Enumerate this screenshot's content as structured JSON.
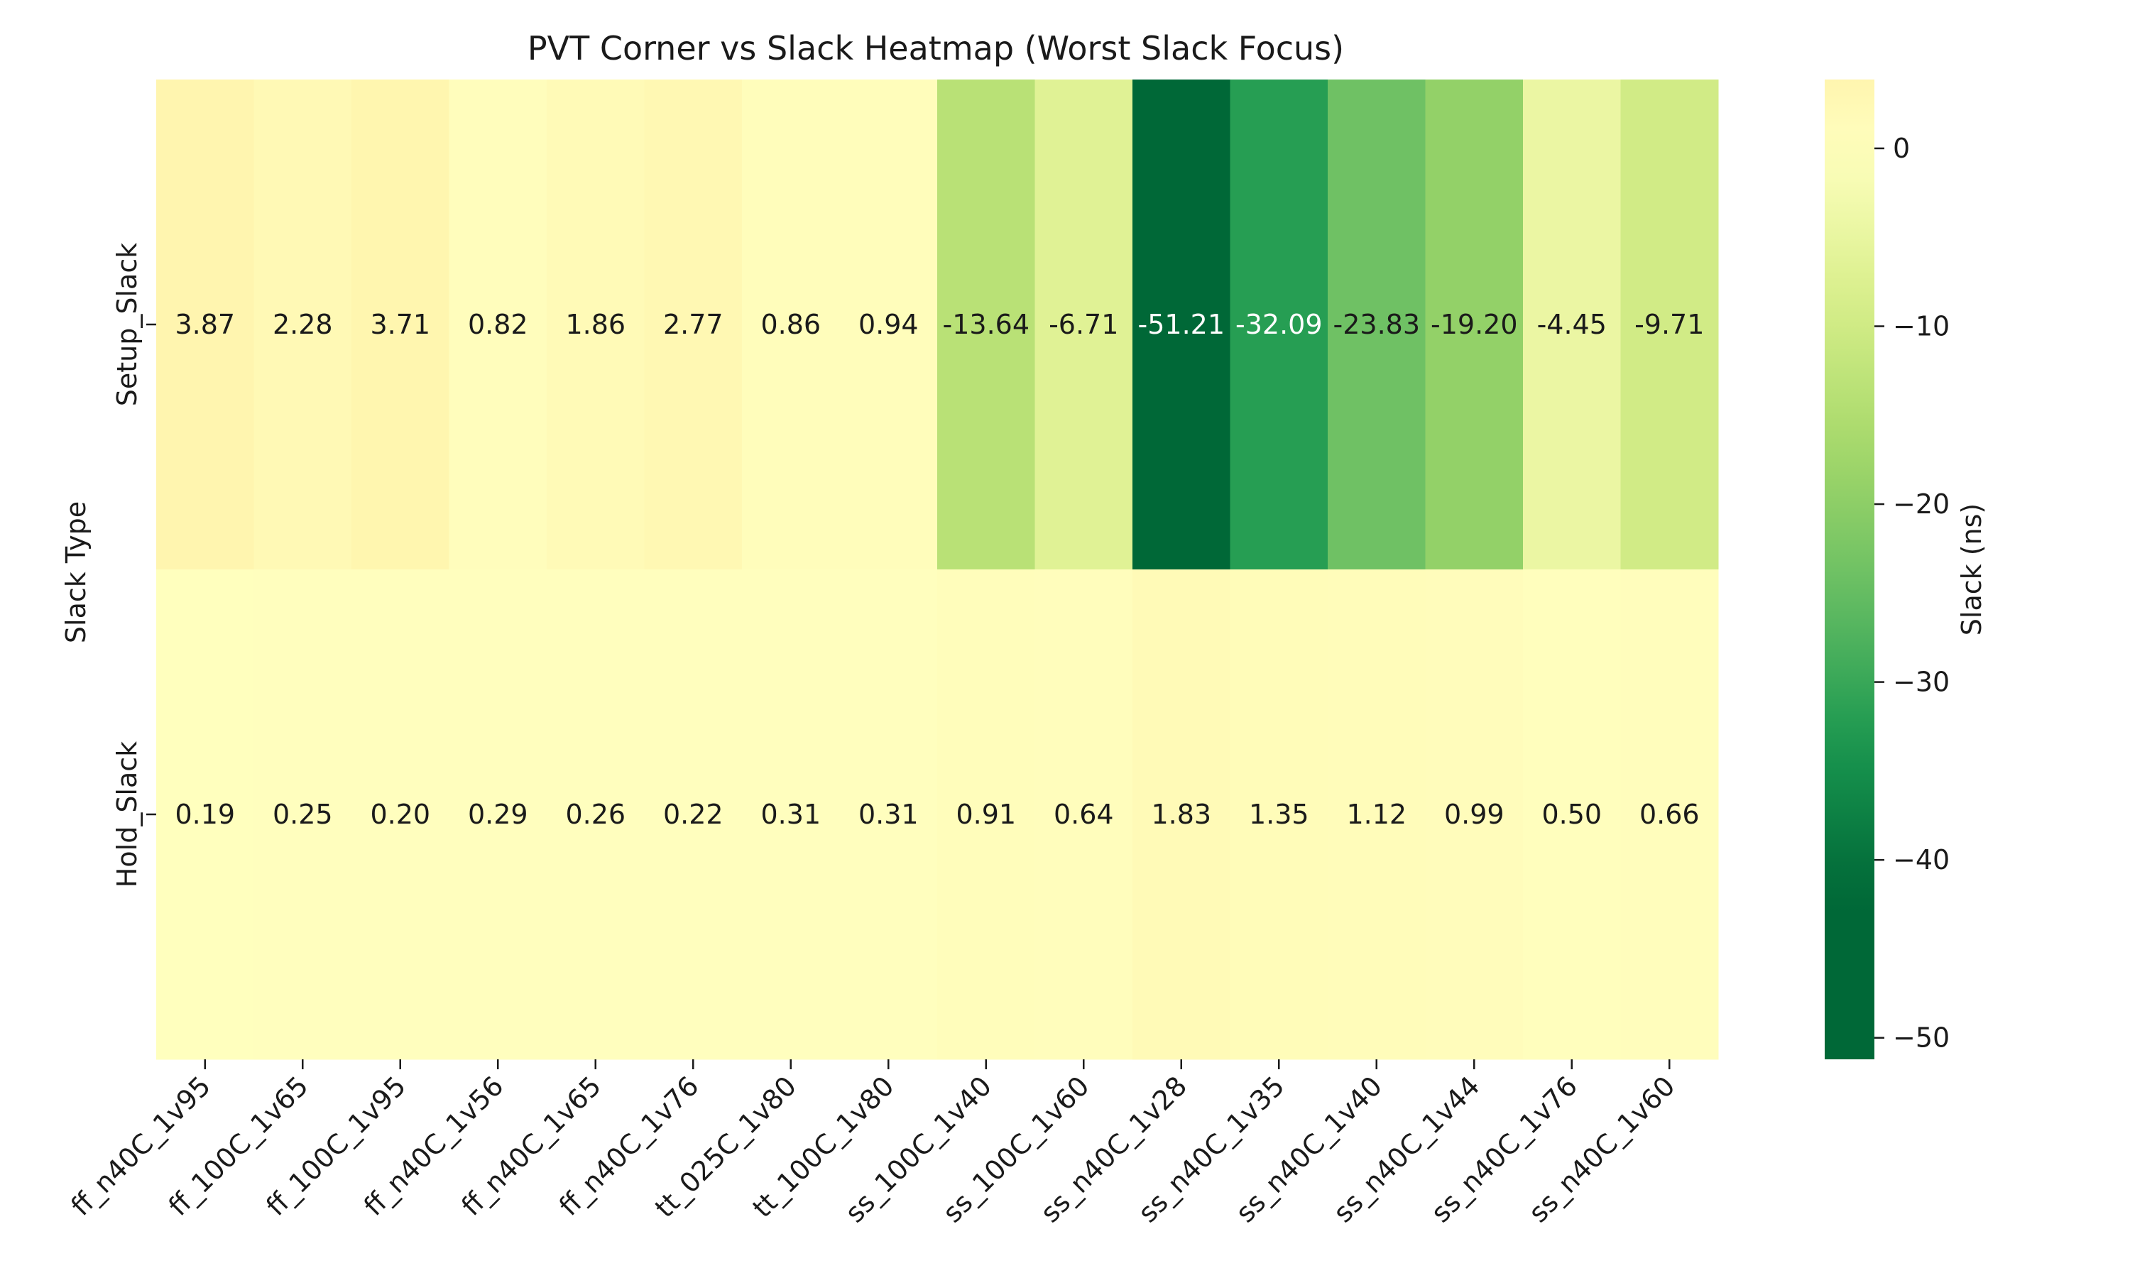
{
  "chart_data": {
    "type": "heatmap",
    "title": "PVT Corner vs Slack Heatmap (Worst Slack Focus)",
    "xlabel": "",
    "ylabel": "Slack Type",
    "colorbar_label": "Slack (ns)",
    "colormap": "RdYlGn_r",
    "colorbar_range": [
      -51.21,
      3.87
    ],
    "colorbar_ticks": [
      0,
      -10,
      -20,
      -30,
      -40,
      -50
    ],
    "colorbar_tick_labels": [
      "0",
      "−10",
      "−20",
      "−30",
      "−40",
      "−50"
    ],
    "x_categories": [
      "ff_n40C_1v95",
      "ff_100C_1v65",
      "ff_100C_1v95",
      "ff_n40C_1v56",
      "ff_n40C_1v65",
      "ff_n40C_1v76",
      "tt_025C_1v80",
      "tt_100C_1v80",
      "ss_100C_1v40",
      "ss_100C_1v60",
      "ss_n40C_1v28",
      "ss_n40C_1v35",
      "ss_n40C_1v40",
      "ss_n40C_1v44",
      "ss_n40C_1v76",
      "ss_n40C_1v60"
    ],
    "y_categories": [
      "Setup_Slack",
      "Hold_Slack"
    ],
    "values": [
      [
        3.87,
        2.28,
        3.71,
        0.82,
        1.86,
        2.77,
        0.86,
        0.94,
        -13.64,
        -6.71,
        -51.21,
        -32.09,
        -23.83,
        -19.2,
        -4.45,
        -9.71
      ],
      [
        0.19,
        0.25,
        0.2,
        0.29,
        0.26,
        0.22,
        0.31,
        0.31,
        0.91,
        0.64,
        1.83,
        1.35,
        1.12,
        0.99,
        0.5,
        0.66
      ]
    ],
    "cell_labels": [
      [
        "3.87",
        "2.28",
        "3.71",
        "0.82",
        "1.86",
        "2.77",
        "0.86",
        "0.94",
        "-13.64",
        "-6.71",
        "-51.21",
        "-32.09",
        "-23.83",
        "-19.20",
        "-4.45",
        "-9.71"
      ],
      [
        "0.19",
        "0.25",
        "0.20",
        "0.29",
        "0.26",
        "0.22",
        "0.31",
        "0.31",
        "0.91",
        "0.64",
        "1.83",
        "1.35",
        "1.12",
        "0.99",
        "0.50",
        "0.66"
      ]
    ],
    "grid": false,
    "colorbar_position": "right"
  }
}
